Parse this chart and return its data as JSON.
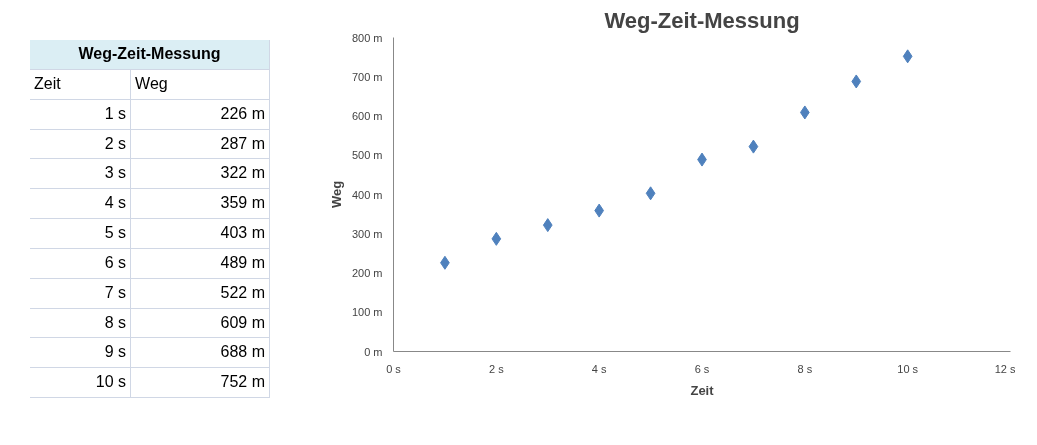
{
  "chart_data": {
    "type": "scatter",
    "title": "Weg-Zeit-Messung",
    "xlabel": "Zeit",
    "ylabel": "Weg",
    "x": [
      1,
      2,
      3,
      4,
      5,
      6,
      7,
      8,
      9,
      10
    ],
    "series": [
      {
        "color": "#4f81bd",
        "values": [
          226,
          287,
          322,
          359,
          403,
          489,
          522,
          609,
          688,
          752
        ]
      }
    ],
    "annotations": [
      "Weg-Zeit-Messung",
      "Zeit",
      "Weg",
      "1 s",
      "226 m",
      "2 s",
      "287 m",
      "3 s",
      "322 m",
      "4 s",
      "359 m",
      "5 s",
      "403 m",
      "6 s",
      "489 m",
      "7 s",
      "522 m",
      "8 s",
      "609 m",
      "9 s",
      "688 m",
      "10 s",
      "752 m"
    ],
    "xlim": [
      0,
      12
    ],
    "ylim": [
      0,
      800
    ],
    "xticks": [
      {
        "value": 0,
        "label": "0 s"
      },
      {
        "value": 2,
        "label": "2 s"
      },
      {
        "value": 4,
        "label": "4 s"
      },
      {
        "value": 6,
        "label": "6 s"
      },
      {
        "value": 8,
        "label": "8 s"
      },
      {
        "value": 10,
        "label": "10 s"
      },
      {
        "value": 12,
        "label": "12 s"
      }
    ],
    "yticks": [
      {
        "value": 0,
        "label": "0 m"
      },
      {
        "value": 100,
        "label": "100 m"
      },
      {
        "value": 200,
        "label": "200 m"
      },
      {
        "value": 300,
        "label": "300 m"
      },
      {
        "value": 400,
        "label": "400 m"
      },
      {
        "value": 500,
        "label": "500 m"
      },
      {
        "value": 600,
        "label": "600 m"
      },
      {
        "value": 700,
        "label": "700 m"
      },
      {
        "value": 800,
        "label": "800 m"
      }
    ],
    "marker": "diamond",
    "grid": false
  }
}
